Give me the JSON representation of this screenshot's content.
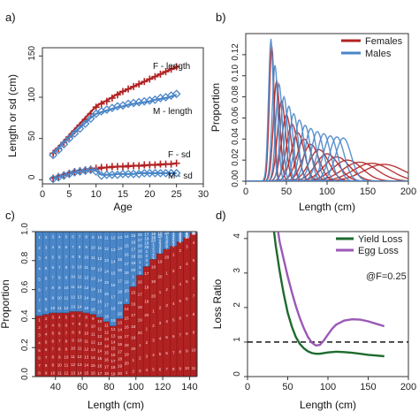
{
  "figure": {
    "colors": {
      "red": "#B22222",
      "blue": "#4A86C8",
      "green": "#1E6B2E",
      "purple": "#9B59B6",
      "axis": "#333333",
      "black": "#000000"
    }
  },
  "chart_data": [
    {
      "panel_label": "a)",
      "type": "line",
      "xlabel": "Age",
      "ylabel": "Length or sd (cm)",
      "xlim": [
        0,
        30
      ],
      "ylim": [
        -5,
        160
      ],
      "xticks": [
        0,
        5,
        10,
        15,
        20,
        25,
        30
      ],
      "yticks": [
        0,
        50,
        100,
        150
      ],
      "annotations": [
        "F - length",
        "M - length",
        "F - sd",
        "M - sd"
      ],
      "series": [
        {
          "key": "F - length",
          "marker": "plus",
          "color": "red",
          "x": [
            2,
            3,
            4,
            5,
            6,
            7,
            8,
            9,
            10,
            11,
            12,
            13,
            14,
            15,
            16,
            17,
            18,
            19,
            20,
            21,
            22,
            23,
            24,
            25
          ],
          "y": [
            32,
            38,
            45,
            52,
            59,
            66,
            73,
            80,
            88,
            92,
            95,
            99,
            103,
            107,
            110,
            113,
            116,
            119,
            122,
            125,
            128,
            131,
            134,
            137
          ],
          "fit": [
            34,
            40,
            47,
            54,
            61,
            68,
            75,
            82,
            89,
            93,
            96,
            100,
            104,
            107,
            110,
            113,
            116,
            119,
            122,
            125,
            128,
            131,
            134,
            136
          ]
        },
        {
          "key": "M - length",
          "marker": "diamond",
          "color": "blue",
          "x": [
            2,
            3,
            4,
            5,
            6,
            7,
            8,
            9,
            10,
            11,
            12,
            13,
            14,
            15,
            16,
            17,
            18,
            19,
            20,
            21,
            22,
            23,
            24,
            25
          ],
          "y": [
            30,
            36,
            43,
            50,
            56,
            62,
            68,
            74,
            80,
            83,
            85,
            87,
            89,
            90,
            92,
            93,
            94,
            95,
            96,
            97,
            99,
            100,
            102,
            104
          ],
          "fit": [
            32,
            38,
            45,
            51,
            57,
            63,
            69,
            75,
            80,
            82,
            84,
            86,
            88,
            89,
            91,
            92,
            93,
            94,
            95,
            97,
            98,
            99,
            101,
            103
          ]
        },
        {
          "key": "F - sd",
          "marker": "plus",
          "color": "red",
          "x": [
            2,
            3,
            4,
            5,
            6,
            7,
            8,
            9,
            10,
            11,
            12,
            13,
            14,
            15,
            16,
            17,
            18,
            19,
            20,
            21,
            22,
            23,
            24,
            25
          ],
          "y": [
            2,
            4,
            6,
            8,
            10,
            11,
            12,
            13,
            14,
            15,
            15,
            16,
            16,
            16,
            17,
            17,
            17,
            18,
            18,
            18,
            19,
            19,
            19,
            20
          ],
          "fit": [
            2,
            4,
            6,
            8,
            9,
            10,
            11,
            12,
            13,
            14,
            15,
            15,
            16,
            16,
            16,
            17,
            17,
            17,
            18,
            18,
            18,
            19,
            19,
            20
          ]
        },
        {
          "key": "M - sd",
          "marker": "diamond",
          "color": "blue",
          "x": [
            2,
            3,
            4,
            5,
            6,
            7,
            8,
            9,
            10,
            11,
            12,
            13,
            14,
            15,
            16,
            17,
            18,
            19,
            20,
            21,
            22,
            23,
            24,
            25
          ],
          "y": [
            1,
            3,
            5,
            7,
            9,
            10,
            11,
            12,
            10,
            5,
            6,
            6,
            6,
            7,
            7,
            7,
            7,
            8,
            8,
            8,
            8,
            8,
            8,
            8
          ],
          "fit": [
            1,
            3,
            5,
            7,
            9,
            10,
            11,
            12,
            11,
            6,
            6,
            6,
            7,
            7,
            7,
            7,
            8,
            8,
            8,
            8,
            8,
            8,
            8,
            8
          ]
        }
      ]
    },
    {
      "panel_label": "b)",
      "type": "line",
      "xlabel": "Length (cm)",
      "ylabel": "Proportion",
      "xlim": [
        0,
        200
      ],
      "ylim": [
        0,
        0.14
      ],
      "xticks": [
        0,
        50,
        100,
        150,
        200
      ],
      "yticks": [
        0.0,
        0.02,
        0.04,
        0.06,
        0.08,
        0.1,
        0.12
      ],
      "legend": {
        "position": "top-right",
        "entries": [
          "Females",
          "Males"
        ]
      },
      "curve_params": {
        "females": {
          "means": [
            32,
            38,
            44,
            50,
            57,
            64,
            72,
            80,
            90,
            100,
            112,
            125,
            140,
            155,
            170
          ],
          "sds": [
            3,
            4,
            5,
            6,
            7,
            8,
            9,
            10,
            12,
            14,
            16,
            18,
            21,
            23,
            25
          ],
          "peaks": [
            0.128,
            0.095,
            0.076,
            0.063,
            0.054,
            0.046,
            0.04,
            0.035,
            0.03,
            0.026,
            0.023,
            0.02,
            0.018,
            0.017,
            0.016
          ]
        },
        "males": {
          "means": [
            31,
            36,
            41,
            47,
            53,
            59,
            66,
            73,
            80,
            88,
            96,
            104,
            112,
            120
          ],
          "sds": [
            3,
            3.5,
            4,
            4.5,
            5,
            5.5,
            6,
            6.5,
            7,
            7.5,
            8,
            8.5,
            9,
            9.5
          ],
          "peaks": [
            0.135,
            0.11,
            0.092,
            0.08,
            0.071,
            0.064,
            0.058,
            0.053,
            0.05,
            0.047,
            0.045,
            0.043,
            0.042,
            0.041
          ]
        }
      }
    },
    {
      "panel_label": "c)",
      "type": "area",
      "xlabel": "Length (cm)",
      "ylabel": "Proportion",
      "xlim": [
        25,
        145
      ],
      "ylim": [
        0,
        1
      ],
      "xticks": [
        40,
        60,
        80,
        100,
        120,
        140
      ],
      "yticks": [
        0.0,
        0.2,
        0.4,
        0.6,
        0.8,
        1.0
      ],
      "x": [
        28,
        33,
        38,
        43,
        48,
        53,
        58,
        63,
        68,
        73,
        78,
        83,
        88,
        93,
        98,
        103,
        108,
        113,
        118,
        123,
        128,
        133,
        138,
        143
      ],
      "female_proportion": [
        0.42,
        0.43,
        0.44,
        0.44,
        0.44,
        0.45,
        0.45,
        0.44,
        0.43,
        0.41,
        0.38,
        0.35,
        0.4,
        0.5,
        0.62,
        0.7,
        0.76,
        0.81,
        0.85,
        0.88,
        0.9,
        0.93,
        0.96,
        0.99
      ],
      "cell_labels": [
        "1",
        "2",
        "3",
        "4",
        "5",
        "6",
        "7",
        "8",
        "9",
        "10",
        "11",
        "12",
        "13",
        "14",
        "15",
        "16",
        "17",
        "18",
        "19",
        "20"
      ]
    },
    {
      "panel_label": "d)",
      "type": "line",
      "xlabel": "Length (cm)",
      "ylabel": "Loss Ratio",
      "xlim": [
        0,
        200
      ],
      "ylim": [
        0,
        4.2
      ],
      "xticks": [
        0,
        50,
        100,
        150,
        200
      ],
      "yticks": [
        0,
        1,
        2,
        3,
        4
      ],
      "annotation": "@F=0.25",
      "reference_line_y": 1,
      "legend": {
        "position": "top-right",
        "entries": [
          "Yield Loss",
          "Egg Loss"
        ]
      },
      "series": [
        {
          "name": "Yield Loss",
          "color": "green",
          "x": [
            33,
            35,
            40,
            45,
            50,
            55,
            60,
            65,
            70,
            75,
            80,
            85,
            90,
            100,
            110,
            120,
            130,
            140,
            150,
            160,
            170
          ],
          "y": [
            4.2,
            3.8,
            3.05,
            2.4,
            1.85,
            1.45,
            1.15,
            0.95,
            0.82,
            0.73,
            0.68,
            0.66,
            0.66,
            0.7,
            0.72,
            0.71,
            0.69,
            0.66,
            0.63,
            0.61,
            0.59
          ]
        },
        {
          "name": "Egg Loss",
          "color": "purple",
          "x": [
            38,
            40,
            45,
            50,
            55,
            60,
            65,
            70,
            75,
            80,
            85,
            90,
            95,
            100,
            105,
            110,
            120,
            130,
            140,
            150,
            160,
            170
          ],
          "y": [
            4.2,
            3.9,
            3.4,
            2.9,
            2.45,
            2.05,
            1.7,
            1.4,
            1.15,
            0.98,
            0.9,
            0.92,
            1.05,
            1.22,
            1.38,
            1.5,
            1.62,
            1.66,
            1.65,
            1.6,
            1.53,
            1.46
          ]
        }
      ]
    }
  ]
}
